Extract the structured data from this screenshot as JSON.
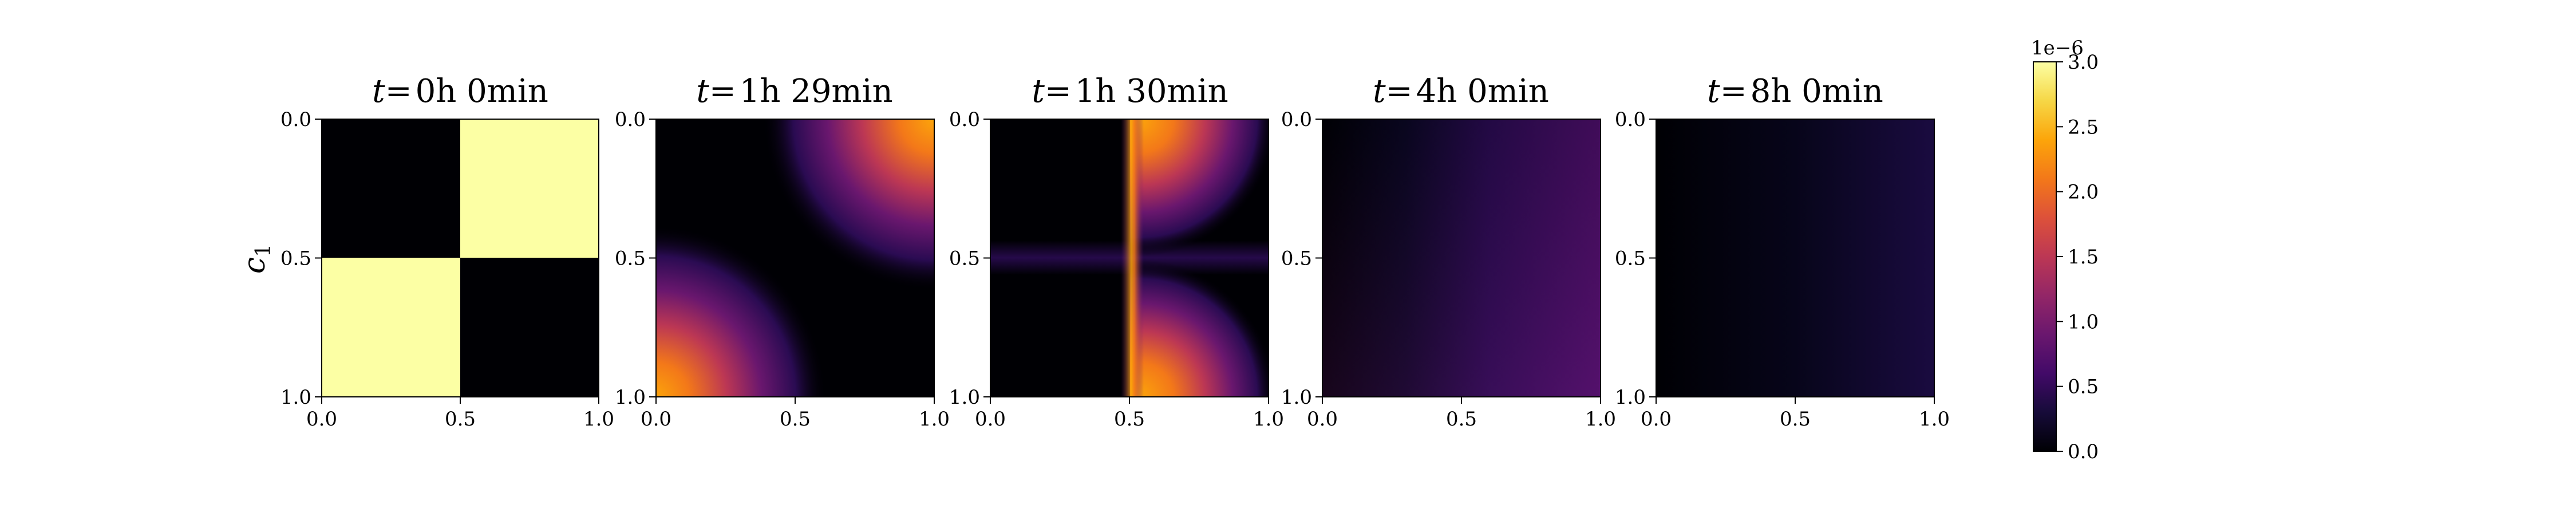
{
  "chart_data": {
    "type": "heatmap",
    "colormap": "inferno",
    "ylabel": "c",
    "ylabel_subscript": "1",
    "axis_ticks": [
      "0.0",
      "0.5",
      "1.0"
    ],
    "xlim": [
      0,
      1
    ],
    "ylim": [
      1,
      0
    ],
    "colorbar": {
      "exponent_label": "1e−6",
      "range": [
        0,
        3.0
      ],
      "ticks": [
        "0.0",
        "0.5",
        "1.0",
        "1.5",
        "2.0",
        "2.5",
        "3.0"
      ],
      "tick_values": [
        0,
        0.5,
        1.0,
        1.5,
        2.0,
        2.5,
        3.0
      ]
    },
    "panels": [
      {
        "title_var": "t",
        "title_eq": "=",
        "title_time": "0h 0min",
        "approx_max_value": 3.0,
        "description": "checkerboard"
      },
      {
        "title_var": "t",
        "title_eq": "=",
        "title_time": "1h 29min",
        "approx_max_value": 2.6
      },
      {
        "title_var": "t",
        "title_eq": "=",
        "title_time": "1h 30min",
        "approx_max_value": 2.6
      },
      {
        "title_var": "t",
        "title_eq": "=",
        "title_time": "4h 0min",
        "approx_max_value": 0.9
      },
      {
        "title_var": "t",
        "title_eq": "=",
        "title_time": "8h 0min",
        "approx_max_value": 0.45
      }
    ]
  }
}
